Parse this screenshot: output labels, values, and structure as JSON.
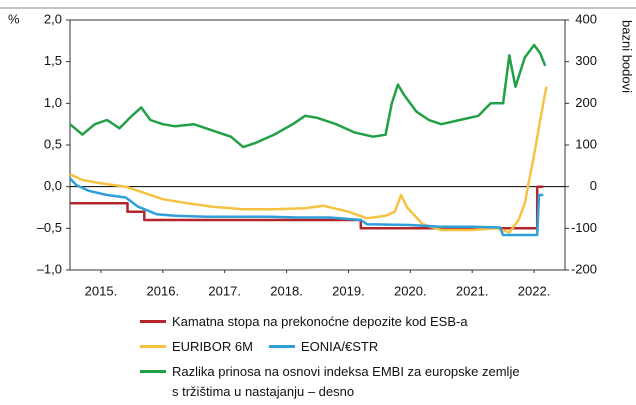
{
  "chart_data": {
    "type": "line",
    "ylabel": "%",
    "y2label": "bazni bodovi",
    "xlim": [
      2015,
      2023
    ],
    "xticks": [
      {
        "value": 2015.5,
        "label": "2015."
      },
      {
        "value": 2016.5,
        "label": "2016."
      },
      {
        "value": 2017.5,
        "label": "2017."
      },
      {
        "value": 2018.5,
        "label": "2018."
      },
      {
        "value": 2019.5,
        "label": "2019."
      },
      {
        "value": 2020.5,
        "label": "2020."
      },
      {
        "value": 2021.5,
        "label": "2021."
      },
      {
        "value": 2022.5,
        "label": "2022."
      }
    ],
    "ylim": [
      -1,
      2
    ],
    "yticks": [
      {
        "value": 2,
        "label": "2,0"
      },
      {
        "value": 1.5,
        "label": "1,5"
      },
      {
        "value": 1,
        "label": "1,0"
      },
      {
        "value": 0.5,
        "label": "0,5"
      },
      {
        "value": 0,
        "label": "0,0"
      },
      {
        "value": -0.5,
        "label": "–0,5"
      },
      {
        "value": -1,
        "label": "–1,0"
      }
    ],
    "y2lim": [
      -200,
      400
    ],
    "y2ticks": [
      400,
      300,
      200,
      100,
      0,
      -100,
      -200
    ],
    "series": [
      {
        "name": "Kamatna stopa na prekonoćne depozite kod ESB-a",
        "color": "#b3242b",
        "x": [
          2015,
          2015.93,
          2015.93,
          2016.2,
          2016.2,
          2019.7,
          2019.7,
          2022.55,
          2022.55,
          2022.65
        ],
        "values": [
          -0.2,
          -0.2,
          -0.3,
          -0.3,
          -0.4,
          -0.4,
          -0.5,
          -0.5,
          0,
          0
        ]
      },
      {
        "name": "EURIBOR 6M",
        "color": "#f5c242",
        "x": [
          2015,
          2015.2,
          2015.5,
          2015.9,
          2016.1,
          2016.5,
          2016.9,
          2017.3,
          2017.8,
          2018.3,
          2018.8,
          2019.1,
          2019.5,
          2019.8,
          2020.1,
          2020.25,
          2020.35,
          2020.45,
          2020.7,
          2021.0,
          2021.5,
          2021.9,
          2022.1,
          2022.25,
          2022.35,
          2022.4,
          2022.48,
          2022.53,
          2022.6,
          2022.65,
          2022.7
        ],
        "values": [
          0.15,
          0.08,
          0.04,
          0,
          -0.05,
          -0.15,
          -0.2,
          -0.24,
          -0.27,
          -0.27,
          -0.26,
          -0.23,
          -0.3,
          -0.38,
          -0.35,
          -0.3,
          -0.1,
          -0.25,
          -0.45,
          -0.52,
          -0.52,
          -0.5,
          -0.55,
          -0.4,
          -0.2,
          0,
          0.3,
          0.5,
          0.8,
          1,
          1.2
        ]
      },
      {
        "name": "EONIA/€STR",
        "color": "#2e9fd9",
        "x": [
          2015,
          2015.1,
          2015.3,
          2015.6,
          2015.9,
          2016.1,
          2016.4,
          2016.7,
          2017.2,
          2017.7,
          2018.2,
          2018.7,
          2019.2,
          2019.7,
          2019.8,
          2020.5,
          2021.0,
          2021.5,
          2021.95,
          2022.0,
          2022.55,
          2022.58,
          2022.65
        ],
        "values": [
          0.1,
          0.02,
          -0.05,
          -0.1,
          -0.13,
          -0.24,
          -0.33,
          -0.35,
          -0.36,
          -0.36,
          -0.36,
          -0.37,
          -0.37,
          -0.4,
          -0.45,
          -0.46,
          -0.48,
          -0.48,
          -0.49,
          -0.58,
          -0.58,
          -0.1,
          -0.1
        ]
      },
      {
        "name": "Razlika prinosa na osnovi indeksa EMBI za europske zemlje s tržištima u nastajanju – desno",
        "color": "#22a046",
        "axis": "y2",
        "x": [
          2015,
          2015.2,
          2015.4,
          2015.6,
          2015.8,
          2016.0,
          2016.15,
          2016.3,
          2016.5,
          2016.7,
          2017.0,
          2017.3,
          2017.6,
          2017.8,
          2018.0,
          2018.3,
          2018.6,
          2018.8,
          2019.0,
          2019.3,
          2019.6,
          2019.9,
          2020.1,
          2020.2,
          2020.3,
          2020.4,
          2020.6,
          2020.8,
          2021.0,
          2021.3,
          2021.6,
          2021.8,
          2022.0,
          2022.1,
          2022.2,
          2022.35,
          2022.5,
          2022.6,
          2022.68
        ],
        "values": [
          150,
          125,
          150,
          160,
          140,
          170,
          190,
          160,
          150,
          145,
          150,
          135,
          120,
          95,
          105,
          125,
          150,
          170,
          165,
          150,
          130,
          120,
          125,
          200,
          245,
          220,
          180,
          160,
          150,
          160,
          170,
          200,
          200,
          315,
          240,
          310,
          340,
          320,
          290
        ]
      }
    ]
  }
}
